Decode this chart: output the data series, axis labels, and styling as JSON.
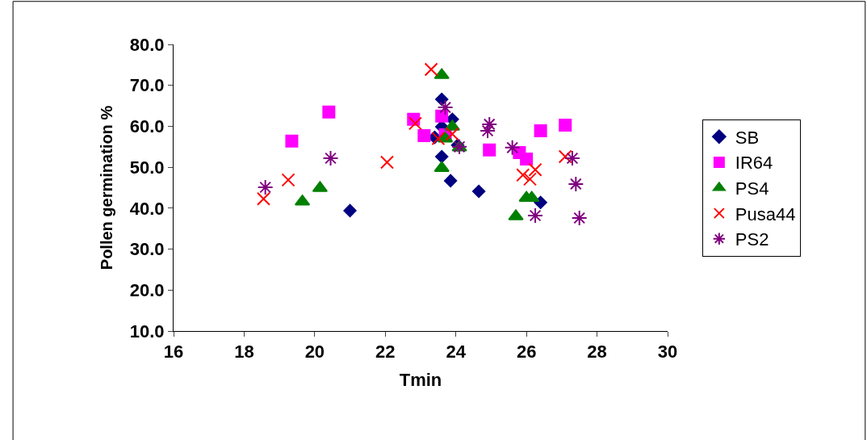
{
  "chart_data": {
    "type": "scatter",
    "xlabel": "Tmin",
    "ylabel": "Pollen germination %",
    "xlim": [
      16,
      30
    ],
    "xticks": [
      16,
      18,
      20,
      22,
      24,
      26,
      28,
      30
    ],
    "ylim": [
      10,
      80
    ],
    "yticks": [
      {
        "value": 10,
        "label": "10.0"
      },
      {
        "value": 20,
        "label": "20.0"
      },
      {
        "value": 30,
        "label": "30.0"
      },
      {
        "value": 40,
        "label": "40.0"
      },
      {
        "value": 50,
        "label": "50.0"
      },
      {
        "value": 60,
        "label": "60.0"
      },
      {
        "value": 70,
        "label": "70.0"
      },
      {
        "value": 80,
        "label": "80.0"
      }
    ],
    "legend": "right",
    "series": [
      {
        "name": "SB",
        "color": "#000080",
        "marker": "diamond",
        "x": [
          23.6,
          23.9,
          23.6,
          23.4,
          23.6,
          23.85,
          24.65,
          26.4,
          21.0,
          24.05
        ],
        "values": [
          66.6,
          61.7,
          59.9,
          57.3,
          52.6,
          46.7,
          44.1,
          41.4,
          39.4,
          55.4
        ]
      },
      {
        "name": "IR64",
        "color": "#ff00ff",
        "marker": "square",
        "x": [
          20.4,
          19.35,
          22.8,
          23.6,
          23.1,
          24.95,
          23.7,
          27.1,
          26.4,
          25.8,
          26.0
        ],
        "values": [
          63.5,
          56.4,
          61.7,
          62.5,
          57.7,
          54.2,
          57.9,
          60.3,
          58.9,
          53.6,
          52.0
        ]
      },
      {
        "name": "PS4",
        "color": "#008000",
        "marker": "triangle",
        "x": [
          23.6,
          23.9,
          23.7,
          24.1,
          23.6,
          20.15,
          19.65,
          26.0,
          26.15,
          25.7
        ],
        "values": [
          72.5,
          59.9,
          57.0,
          54.8,
          49.8,
          44.9,
          41.6,
          42.5,
          42.5,
          38.0
        ]
      },
      {
        "name": "Pusa44",
        "color": "#ff0000",
        "marker": "cross",
        "x": [
          23.3,
          22.85,
          23.5,
          23.9,
          22.05,
          19.25,
          18.55,
          27.1,
          26.25,
          25.9,
          26.1
        ],
        "values": [
          73.9,
          60.7,
          57.0,
          58.1,
          51.2,
          46.9,
          42.3,
          52.6,
          49.4,
          48.1,
          47.1
        ]
      },
      {
        "name": "PS2",
        "color": "#800080",
        "marker": "cross",
        "x": [
          23.7,
          24.95,
          24.9,
          24.1,
          25.6,
          27.3,
          27.4,
          26.25,
          27.5,
          18.6,
          20.45
        ],
        "values": [
          64.6,
          60.5,
          58.9,
          55.0,
          54.8,
          52.2,
          45.9,
          38.2,
          37.6,
          45.1,
          52.2
        ]
      }
    ]
  }
}
